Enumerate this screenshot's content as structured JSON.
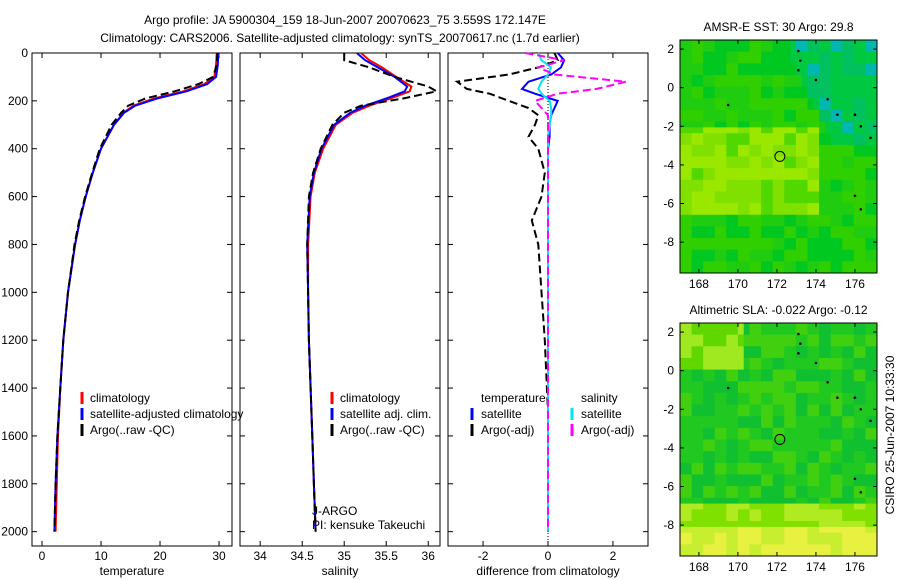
{
  "title_line1": "Argo profile: JA 5900304_159 18-Jun-2007 20070623_75 3.559S 172.147E",
  "title_line2": "Climatology: CARS2006. Satellite-adjusted climatology: synTS_20070617.nc (1.7d earlier)",
  "side_label": "CSIRO 25-Jun-2007 10:33:30",
  "colors": {
    "clim": "#ff0000",
    "sat": "#0000ff",
    "argo": "#000000",
    "sat_sal": "#00e5ee",
    "argo_sal": "#ff00ff"
  },
  "chart_data": [
    {
      "type": "line",
      "id": "temperature",
      "xlabel": "temperature",
      "xlim": [
        -1.7,
        32.2
      ],
      "ylim": [
        0,
        2060
      ],
      "reversed_y": true,
      "xticks": [
        0,
        10,
        20,
        30
      ],
      "yticks": [
        0,
        200,
        400,
        600,
        800,
        1000,
        1200,
        1400,
        1600,
        1800,
        2000
      ],
      "legend": [
        "climatology",
        "satellite-adjusted climatology",
        "Argo(..raw -QC)"
      ],
      "depth": [
        0,
        50,
        100,
        130,
        160,
        190,
        220,
        250,
        300,
        400,
        500,
        600,
        700,
        800,
        1000,
        1200,
        1400,
        1600,
        1800,
        2000
      ],
      "series": [
        {
          "name": "climatology",
          "values": [
            29.6,
            29.5,
            29.2,
            27.5,
            24,
            19,
            15.5,
            13.8,
            12.2,
            10,
            8.6,
            7.4,
            6.4,
            5.6,
            4.4,
            3.6,
            3.1,
            2.7,
            2.5,
            2.3
          ]
        },
        {
          "name": "satellite-adjusted climatology",
          "values": [
            29.9,
            29.8,
            29.5,
            28,
            24.5,
            19.5,
            15.8,
            13.9,
            12.2,
            10,
            8.6,
            7.4,
            6.4,
            5.6,
            4.4,
            3.6,
            3.1,
            2.6,
            2.3,
            2.1
          ]
        },
        {
          "name": "Argo(..raw -QC)",
          "values": [
            29.7,
            29.6,
            29.0,
            26.5,
            22.5,
            17.5,
            14.6,
            13.4,
            11.8,
            9.8,
            8.5,
            7.3,
            6.3,
            5.5,
            4.4,
            3.6,
            3.1,
            2.6,
            2.3,
            2.1
          ]
        }
      ]
    },
    {
      "type": "line",
      "id": "salinity",
      "xlabel": "salinity",
      "xlim": [
        33.76,
        36.14
      ],
      "ylim": [
        0,
        2060
      ],
      "reversed_y": true,
      "xticks": [
        34,
        34.5,
        35,
        35.5,
        36
      ],
      "legend": [
        "climatology",
        "satellite adj. clim.",
        "Argo(..raw -QC)"
      ],
      "annotation": [
        "J-ARGO",
        "PI: kensuke Takeuchi"
      ],
      "depth": [
        0,
        30,
        60,
        100,
        140,
        160,
        190,
        220,
        250,
        300,
        400,
        500,
        600,
        800,
        1000,
        1200,
        1400,
        1600,
        1800,
        2000
      ],
      "series": [
        {
          "name": "climatology",
          "values": [
            35.2,
            35.3,
            35.45,
            35.62,
            35.8,
            35.78,
            35.55,
            35.3,
            35.1,
            34.9,
            34.75,
            34.65,
            34.6,
            34.57,
            34.57,
            34.58,
            34.6,
            34.62,
            34.64,
            34.66
          ]
        },
        {
          "name": "satellite adj. clim.",
          "values": [
            35.15,
            35.25,
            35.4,
            35.6,
            35.75,
            35.72,
            35.5,
            35.25,
            35.07,
            34.88,
            34.73,
            34.64,
            34.59,
            34.56,
            34.57,
            34.58,
            34.6,
            34.62,
            34.64,
            34.66
          ]
        },
        {
          "name": "Argo(..raw -QC)",
          "values": [
            35.0,
            35.0,
            35.3,
            35.6,
            36.0,
            36.1,
            35.7,
            35.2,
            35.0,
            34.86,
            34.72,
            34.63,
            34.58,
            34.56,
            34.57,
            34.58,
            34.6,
            34.62,
            34.64,
            34.66
          ]
        }
      ]
    },
    {
      "type": "line",
      "id": "difference",
      "xlabel": "difference from climatology",
      "xlim": [
        -3.08,
        3.08
      ],
      "ylim": [
        0,
        2060
      ],
      "reversed_y": true,
      "xticks": [
        -2,
        0,
        2
      ],
      "legend_headers": [
        "temperature",
        "salinity"
      ],
      "legend": [
        "satellite",
        "Argo(-adj)",
        "satellite",
        "Argo(-adj)"
      ],
      "depth": [
        0,
        30,
        60,
        90,
        120,
        150,
        170,
        200,
        230,
        260,
        300,
        350,
        400,
        500,
        600,
        700,
        800,
        1000,
        1200,
        1500,
        2000
      ],
      "series": [
        {
          "name": "temperature satellite",
          "values": [
            0.3,
            0.5,
            0.4,
            0.1,
            -0.6,
            -0.8,
            -0.4,
            0.3,
            0.2,
            0.1,
            0.05,
            0.05,
            0,
            0,
            0,
            0,
            0,
            0,
            0,
            0,
            0
          ]
        },
        {
          "name": "temperature Argo(-adj)",
          "values": [
            0.2,
            0.3,
            -0.3,
            -1.2,
            -2.8,
            -2.5,
            -1.8,
            -1.2,
            -0.6,
            -0.3,
            -0.4,
            -0.6,
            -0.3,
            -0.1,
            -0.2,
            -0.5,
            -0.3,
            -0.2,
            -0.1,
            0,
            0
          ]
        },
        {
          "name": "salinity satellite",
          "values": [
            -0.3,
            -0.2,
            0.1,
            0,
            -0.2,
            -0.3,
            -0.2,
            0.05,
            0.1,
            0.1,
            0.05,
            0,
            0,
            0,
            0,
            0,
            0,
            0,
            0,
            0,
            0
          ]
        },
        {
          "name": "salinity Argo(-adj)",
          "values": [
            -0.7,
            0.5,
            -0.3,
            0.2,
            2.4,
            1.5,
            0.3,
            -0.4,
            -0.2,
            0,
            0,
            0,
            0,
            0,
            0,
            0,
            0,
            0,
            0,
            0,
            0
          ]
        }
      ]
    },
    {
      "type": "heatmap",
      "id": "sst_map",
      "title": "AMSR-E SST: 30 Argo: 29.8",
      "xlim": [
        167.03,
        177.13
      ],
      "ylim": [
        -9.6,
        2.47
      ],
      "xticks": [
        168,
        170,
        172,
        174,
        176
      ],
      "yticks": [
        2,
        0,
        -2,
        -4,
        -6,
        -8
      ],
      "argo_position": [
        172.15,
        -3.56
      ]
    },
    {
      "type": "heatmap",
      "id": "sla_map",
      "title": "Altimetric SLA: -0.022 Argo: -0.12",
      "xlim": [
        167.03,
        177.13
      ],
      "ylim": [
        -9.6,
        2.47
      ],
      "xticks": [
        168,
        170,
        172,
        174,
        176
      ],
      "yticks": [
        2,
        0,
        -2,
        -4,
        -6,
        -8
      ],
      "argo_position": [
        172.15,
        -3.56
      ]
    }
  ]
}
